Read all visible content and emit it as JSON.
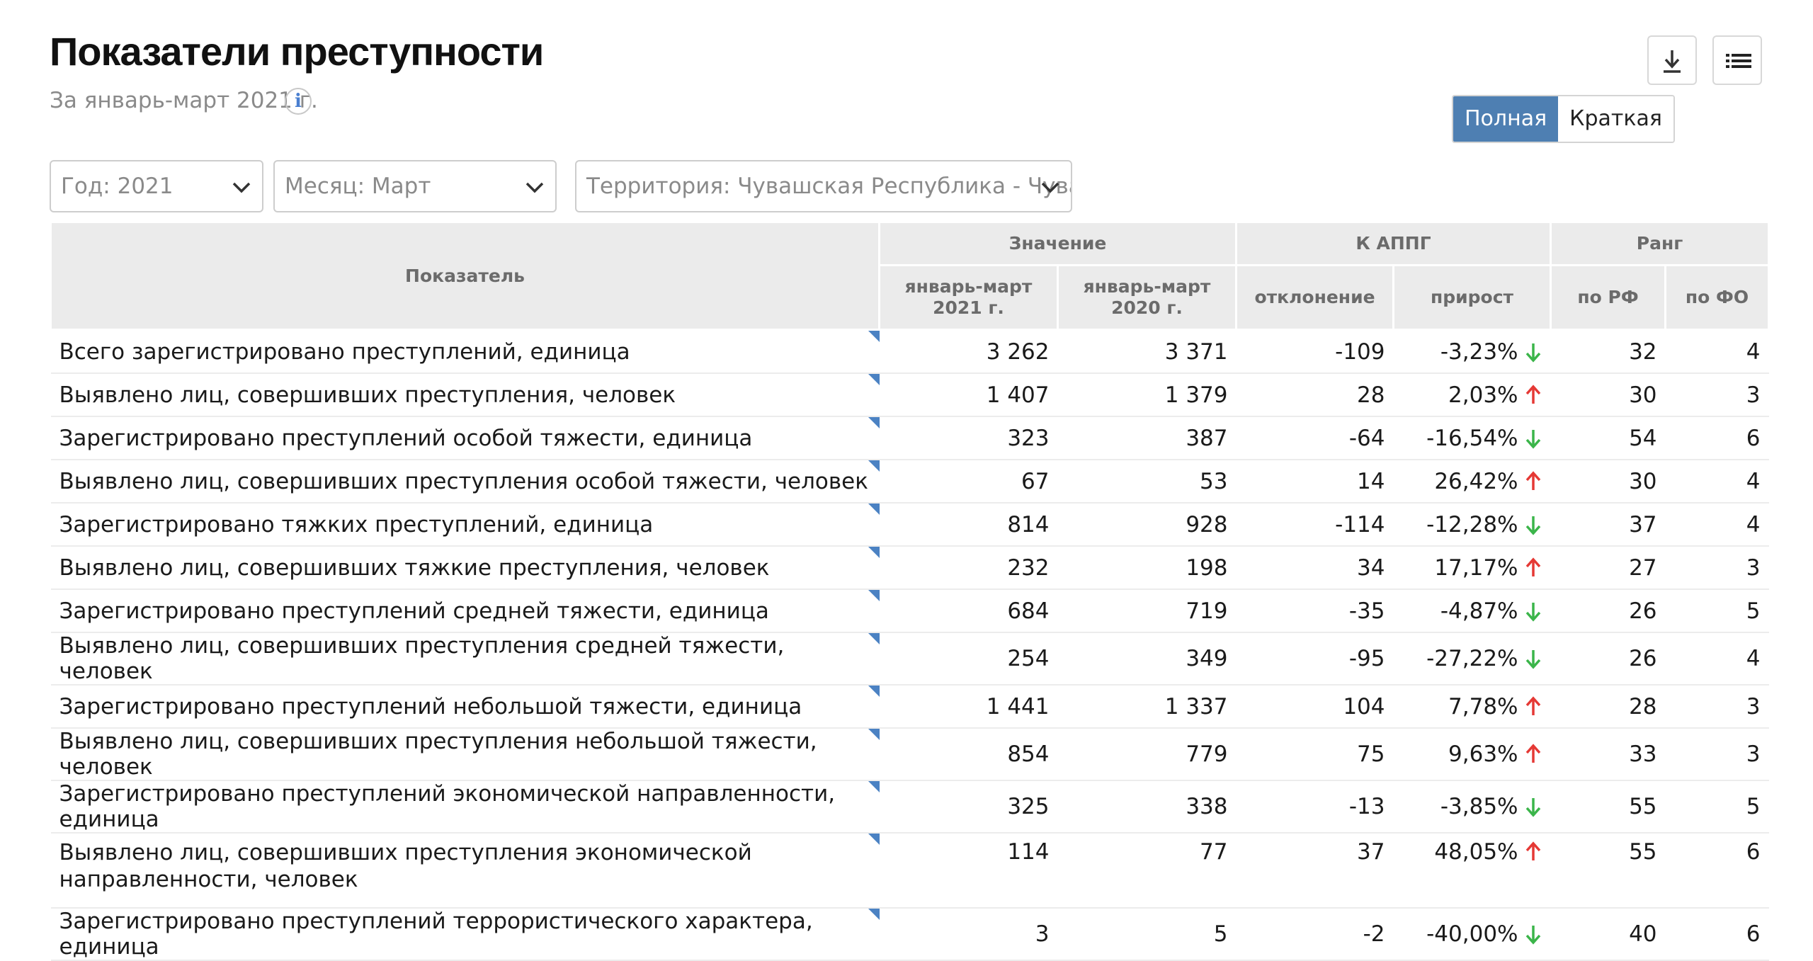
{
  "header": {
    "title": "Показатели преступности",
    "subtitle": "За январь-март 2021 г.",
    "info_icon": "info-icon",
    "download_icon": "download-icon",
    "list_icon": "list-icon"
  },
  "view_toggle": {
    "full": "Полная",
    "short": "Краткая",
    "active": "full"
  },
  "filters": {
    "year": "Год: 2021",
    "month": "Месяц: Март",
    "territory": "Территория: Чувашская Республика - Чуваши"
  },
  "table": {
    "head": {
      "indicator": "Показатель",
      "value": "Значение",
      "appg": "К АППГ",
      "rank": "Ранг",
      "cur": "январь-март 2021 г.",
      "prev": "январь-март 2020 г.",
      "deviation": "отклонение",
      "growth": "прирост",
      "rf": "по РФ",
      "fo": "по ФО"
    },
    "colors": {
      "down_arrow": "#3bb54a",
      "up_arrow": "#e53935",
      "corner_marker": "#4b82c3",
      "header_bg": "#ebebeb"
    },
    "rows": [
      {
        "name": "Всего зарегистрировано преступлений, единица",
        "cur": "3 262",
        "prev": "3 371",
        "dev": "-109",
        "growth": "-3,23%",
        "dir": "down",
        "rf": "32",
        "fo": "4"
      },
      {
        "name": "Выявлено лиц, совершивших преступления, человек",
        "cur": "1 407",
        "prev": "1 379",
        "dev": "28",
        "growth": "2,03%",
        "dir": "up",
        "rf": "30",
        "fo": "3"
      },
      {
        "name": "Зарегистрировано преступлений особой тяжести, единица",
        "cur": "323",
        "prev": "387",
        "dev": "-64",
        "growth": "-16,54%",
        "dir": "down",
        "rf": "54",
        "fo": "6"
      },
      {
        "name": "Выявлено лиц, совершивших преступления особой тяжести, человек",
        "cur": "67",
        "prev": "53",
        "dev": "14",
        "growth": "26,42%",
        "dir": "up",
        "rf": "30",
        "fo": "4"
      },
      {
        "name": "Зарегистрировано тяжких преступлений, единица",
        "cur": "814",
        "prev": "928",
        "dev": "-114",
        "growth": "-12,28%",
        "dir": "down",
        "rf": "37",
        "fo": "4"
      },
      {
        "name": "Выявлено лиц, совершивших тяжкие преступления, человек",
        "cur": "232",
        "prev": "198",
        "dev": "34",
        "growth": "17,17%",
        "dir": "up",
        "rf": "27",
        "fo": "3"
      },
      {
        "name": "Зарегистрировано преступлений средней тяжести, единица",
        "cur": "684",
        "prev": "719",
        "dev": "-35",
        "growth": "-4,87%",
        "dir": "down",
        "rf": "26",
        "fo": "5"
      },
      {
        "name": "Выявлено лиц, совершивших преступления средней тяжести, человек",
        "cur": "254",
        "prev": "349",
        "dev": "-95",
        "growth": "-27,22%",
        "dir": "down",
        "rf": "26",
        "fo": "4"
      },
      {
        "name": "Зарегистрировано преступлений небольшой тяжести, единица",
        "cur": "1 441",
        "prev": "1 337",
        "dev": "104",
        "growth": "7,78%",
        "dir": "up",
        "rf": "28",
        "fo": "3"
      },
      {
        "name": "Выявлено лиц, совершивших преступления небольшой тяжести, человек",
        "cur": "854",
        "prev": "779",
        "dev": "75",
        "growth": "9,63%",
        "dir": "up",
        "rf": "33",
        "fo": "3"
      },
      {
        "name": "Зарегистрировано преступлений экономической направленности, единица",
        "cur": "325",
        "prev": "338",
        "dev": "-13",
        "growth": "-3,85%",
        "dir": "down",
        "rf": "55",
        "fo": "5"
      },
      {
        "name": "Выявлено лиц, совершивших преступления экономической направленности, человек",
        "cur": "114",
        "prev": "77",
        "dev": "37",
        "growth": "48,05%",
        "dir": "up",
        "rf": "55",
        "fo": "6",
        "tall": true
      },
      {
        "name": "Зарегистрировано преступлений террористического характера, единица",
        "cur": "3",
        "prev": "5",
        "dev": "-2",
        "growth": "-40,00%",
        "dir": "down",
        "rf": "40",
        "fo": "6"
      }
    ]
  }
}
